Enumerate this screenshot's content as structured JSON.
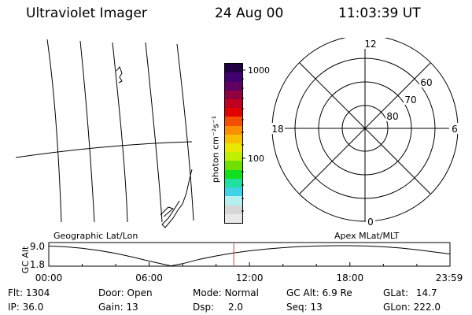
{
  "header": {
    "instrument": "Ultraviolet Imager",
    "date": "24 Aug 00",
    "time": "11:03:39 UT"
  },
  "colorbar": {
    "label": "photon cm⁻²s⁻¹",
    "tick_high": "1000",
    "tick_mid": "100",
    "colors": [
      "#e8e8e8",
      "#d6d6d6",
      "#b5f0f0",
      "#40d0e8",
      "#20e0a0",
      "#10e020",
      "#70e000",
      "#c0f000",
      "#e8e800",
      "#f8c000",
      "#f89000",
      "#f05000",
      "#e00000",
      "#c00020",
      "#900040",
      "#600060",
      "#400070",
      "#200040"
    ]
  },
  "polar": {
    "mlt_top": "12",
    "mlt_left": "18",
    "mlt_right": "6",
    "mlt_bottom": "0",
    "lat_60": "60",
    "lat_70": "70",
    "lat_80": "80"
  },
  "panels": {
    "left_label": "Geographic Lat/Lon",
    "right_label": "Apex MLat/MLT"
  },
  "chart_data": {
    "type": "line",
    "ylabel": "GC Alt",
    "yticks": [
      "9.0",
      "1.8"
    ],
    "xticks": [
      "00:00",
      "06:00",
      "12:00",
      "18:00",
      "23:59"
    ],
    "ylim": [
      1.8,
      9.0
    ],
    "series": [
      {
        "x": [
          0,
          1,
          2,
          3,
          4,
          5,
          6,
          7,
          7.3,
          8,
          9,
          10,
          11,
          12,
          13,
          14,
          15,
          16,
          17,
          18,
          19,
          20,
          21,
          22,
          23,
          23.98
        ],
        "y": [
          8.9,
          8.6,
          8.1,
          7.3,
          6.3,
          5.0,
          3.6,
          2.3,
          1.9,
          2.7,
          4.2,
          5.4,
          6.4,
          7.2,
          7.8,
          8.3,
          8.7,
          8.9,
          9.0,
          9.0,
          8.9,
          8.6,
          8.2,
          7.6,
          6.8,
          6.1
        ]
      }
    ],
    "current_time": 11.06,
    "current_color": "#d04040"
  },
  "info": {
    "flt_label": "Flt:",
    "flt_value": "1304",
    "door_label": "Door:",
    "door_value": "Open",
    "mode_label": "Mode:",
    "mode_value": "Normal",
    "gcalt_label": "GC Alt:",
    "gcalt_value": "6.9 Re",
    "glat_label": "GLat:",
    "glat_value": "14.7",
    "ip_label": "IP:",
    "ip_value": "36.0",
    "gain_label": "Gain:",
    "gain_value": "13",
    "dsp_label": "Dsp:",
    "dsp_value": "2.0",
    "seq_label": "Seq:",
    "seq_value": "13",
    "glon_label": "GLon:",
    "glon_value": "222.0"
  }
}
